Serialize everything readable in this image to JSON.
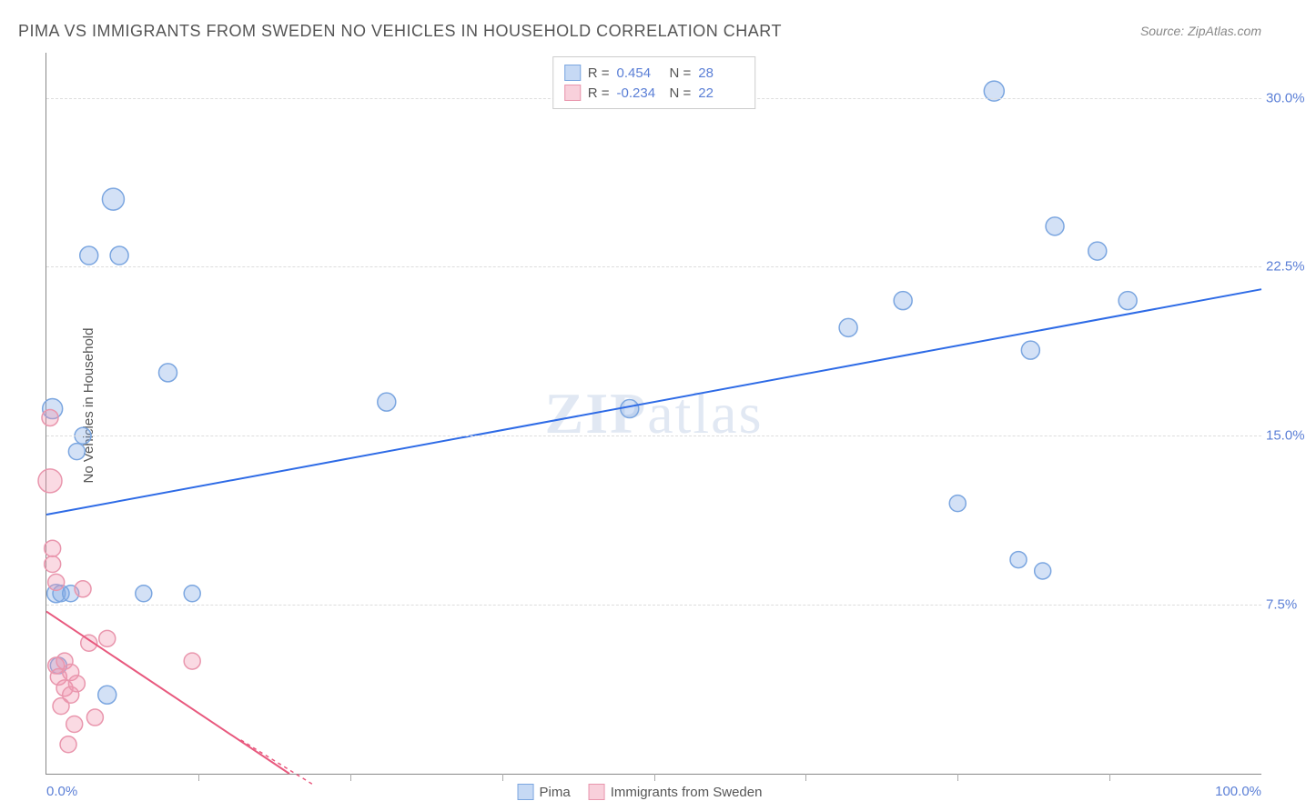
{
  "title": "PIMA VS IMMIGRANTS FROM SWEDEN NO VEHICLES IN HOUSEHOLD CORRELATION CHART",
  "source": "Source: ZipAtlas.com",
  "y_axis_label": "No Vehicles in Household",
  "watermark": "ZIPatlas",
  "chart": {
    "type": "scatter",
    "xlim": [
      0,
      100
    ],
    "ylim": [
      0,
      32
    ],
    "x_tick_labels": [
      {
        "pos": 0,
        "label": "0.0%"
      },
      {
        "pos": 100,
        "label": "100.0%"
      }
    ],
    "x_minor_ticks": [
      12.5,
      25,
      37.5,
      50,
      62.5,
      75,
      87.5
    ],
    "y_ticks": [
      {
        "pos": 7.5,
        "label": "7.5%"
      },
      {
        "pos": 15.0,
        "label": "15.0%"
      },
      {
        "pos": 22.5,
        "label": "22.5%"
      },
      {
        "pos": 30.0,
        "label": "30.0%"
      }
    ],
    "background_color": "#ffffff",
    "grid_color": "#dddddd",
    "axis_color": "#888888"
  },
  "series": [
    {
      "name": "Pima",
      "color_fill": "rgba(128,170,230,0.35)",
      "color_stroke": "#7ba6e0",
      "line_color": "#2e6be6",
      "line_width": 2,
      "marker_r": 10,
      "R": "0.454",
      "N": "28",
      "trend": {
        "x1": 0,
        "y1": 11.5,
        "x2": 100,
        "y2": 21.5
      },
      "points": [
        {
          "x": 0.5,
          "y": 16.2,
          "r": 11
        },
        {
          "x": 0.8,
          "y": 8.0,
          "r": 10
        },
        {
          "x": 1.0,
          "y": 4.8,
          "r": 9
        },
        {
          "x": 1.2,
          "y": 8.0,
          "r": 9
        },
        {
          "x": 2.0,
          "y": 8.0,
          "r": 9
        },
        {
          "x": 2.5,
          "y": 14.3,
          "r": 9
        },
        {
          "x": 3.0,
          "y": 15.0,
          "r": 9
        },
        {
          "x": 3.5,
          "y": 23.0,
          "r": 10
        },
        {
          "x": 5.0,
          "y": 3.5,
          "r": 10
        },
        {
          "x": 5.5,
          "y": 25.5,
          "r": 12
        },
        {
          "x": 6.0,
          "y": 23.0,
          "r": 10
        },
        {
          "x": 8.0,
          "y": 8.0,
          "r": 9
        },
        {
          "x": 10.0,
          "y": 17.8,
          "r": 10
        },
        {
          "x": 12.0,
          "y": 8.0,
          "r": 9
        },
        {
          "x": 28.0,
          "y": 16.5,
          "r": 10
        },
        {
          "x": 48.0,
          "y": 16.2,
          "r": 10
        },
        {
          "x": 66.0,
          "y": 19.8,
          "r": 10
        },
        {
          "x": 70.5,
          "y": 21.0,
          "r": 10
        },
        {
          "x": 75.0,
          "y": 12.0,
          "r": 9
        },
        {
          "x": 78.0,
          "y": 30.3,
          "r": 11
        },
        {
          "x": 80.0,
          "y": 9.5,
          "r": 9
        },
        {
          "x": 81.0,
          "y": 18.8,
          "r": 10
        },
        {
          "x": 82.0,
          "y": 9.0,
          "r": 9
        },
        {
          "x": 83.0,
          "y": 24.3,
          "r": 10
        },
        {
          "x": 86.5,
          "y": 23.2,
          "r": 10
        },
        {
          "x": 89.0,
          "y": 21.0,
          "r": 10
        }
      ]
    },
    {
      "name": "Immigrants from Sweden",
      "color_fill": "rgba(240,150,175,0.35)",
      "color_stroke": "#e996ad",
      "line_color": "#e8597e",
      "line_width": 2,
      "marker_r": 9,
      "R": "-0.234",
      "N": "22",
      "trend": {
        "x1": 0,
        "y1": 7.2,
        "x2": 20,
        "y2": 0
      },
      "trend_dash": {
        "x1": 16,
        "y1": 1.5,
        "x2": 22,
        "y2": -0.5
      },
      "points": [
        {
          "x": 0.3,
          "y": 15.8,
          "r": 9
        },
        {
          "x": 0.3,
          "y": 13.0,
          "r": 13
        },
        {
          "x": 0.5,
          "y": 10.0,
          "r": 9
        },
        {
          "x": 0.5,
          "y": 9.3,
          "r": 9
        },
        {
          "x": 0.8,
          "y": 8.5,
          "r": 9
        },
        {
          "x": 0.8,
          "y": 4.8,
          "r": 9
        },
        {
          "x": 1.0,
          "y": 4.3,
          "r": 9
        },
        {
          "x": 1.2,
          "y": 3.0,
          "r": 9
        },
        {
          "x": 1.5,
          "y": 5.0,
          "r": 9
        },
        {
          "x": 1.5,
          "y": 3.8,
          "r": 9
        },
        {
          "x": 1.8,
          "y": 1.3,
          "r": 9
        },
        {
          "x": 2.0,
          "y": 4.5,
          "r": 9
        },
        {
          "x": 2.0,
          "y": 3.5,
          "r": 9
        },
        {
          "x": 2.3,
          "y": 2.2,
          "r": 9
        },
        {
          "x": 2.5,
          "y": 4.0,
          "r": 9
        },
        {
          "x": 3.0,
          "y": 8.2,
          "r": 9
        },
        {
          "x": 3.5,
          "y": 5.8,
          "r": 9
        },
        {
          "x": 4.0,
          "y": 2.5,
          "r": 9
        },
        {
          "x": 5.0,
          "y": 6.0,
          "r": 9
        },
        {
          "x": 12.0,
          "y": 5.0,
          "r": 9
        }
      ]
    }
  ],
  "legend_bottom": [
    {
      "label": "Pima",
      "fill": "rgba(128,170,230,0.45)",
      "stroke": "#7ba6e0"
    },
    {
      "label": "Immigrants from Sweden",
      "fill": "rgba(240,150,175,0.45)",
      "stroke": "#e996ad"
    }
  ]
}
